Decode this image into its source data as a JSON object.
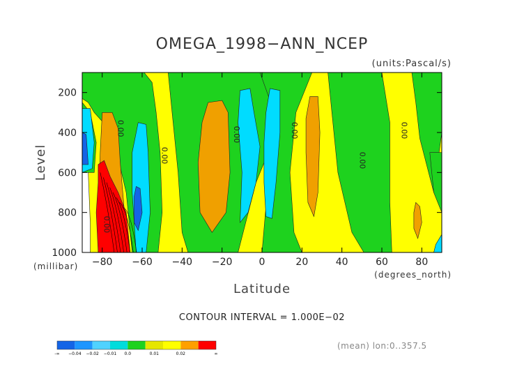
{
  "chart_data": {
    "type": "heatmap",
    "title": "OMEGA_1998−ANN_NCEP",
    "units": "(units:Pascal/s)",
    "xlabel": "Latitude",
    "xunits": "(degrees_north)",
    "ylabel": "Level",
    "yunits": "(millibar)",
    "xlim": [
      -90,
      90
    ],
    "ylim": [
      1000,
      100
    ],
    "xticks": [
      -80,
      -60,
      -40,
      -20,
      0,
      20,
      40,
      60,
      80
    ],
    "xtick_labels": [
      "−80",
      "−60",
      "−40",
      "−20",
      "0",
      "20",
      "40",
      "60",
      "80"
    ],
    "yticks": [
      200,
      400,
      600,
      800,
      1000
    ],
    "ytick_labels": [
      "200",
      "400",
      "600",
      "800",
      "1000"
    ],
    "contour_interval": "CONTOUR INTERVAL = 1.000E−02",
    "mean_note": "(mean) lon:0..357.5",
    "contour_labels": [
      {
        "text": "0.00",
        "lat": -72,
        "lev": 380
      },
      {
        "text": "0.00",
        "lat": -50,
        "lev": 515
      },
      {
        "text": "0.00",
        "lat": -14,
        "lev": 410
      },
      {
        "text": "0.00",
        "lat": 15,
        "lev": 390
      },
      {
        "text": "0.00",
        "lat": 49,
        "lev": 540
      },
      {
        "text": "0.00",
        "lat": 70,
        "lev": 390
      },
      {
        "text": "0.00",
        "lat": -79,
        "lev": 860
      }
    ],
    "colorbar": {
      "colors": [
        "#1464e6",
        "#1e96ff",
        "#50d2ff",
        "#00dcdc",
        "#1ed21e",
        "#e6e600",
        "#ffff00",
        "#ffa000",
        "#ff0000"
      ],
      "labels": [
        "-∞",
        "−0.04",
        "−0.02",
        "−0.01",
        "0.0",
        "0.01",
        "0.02",
        "∞"
      ]
    },
    "bands": {
      "dark_blue": "#1464e6",
      "cyan": "#00dcff",
      "green": "#1ed21e",
      "yellow": "#ffff00",
      "orange": "#f0a000",
      "red": "#ff0000"
    }
  }
}
